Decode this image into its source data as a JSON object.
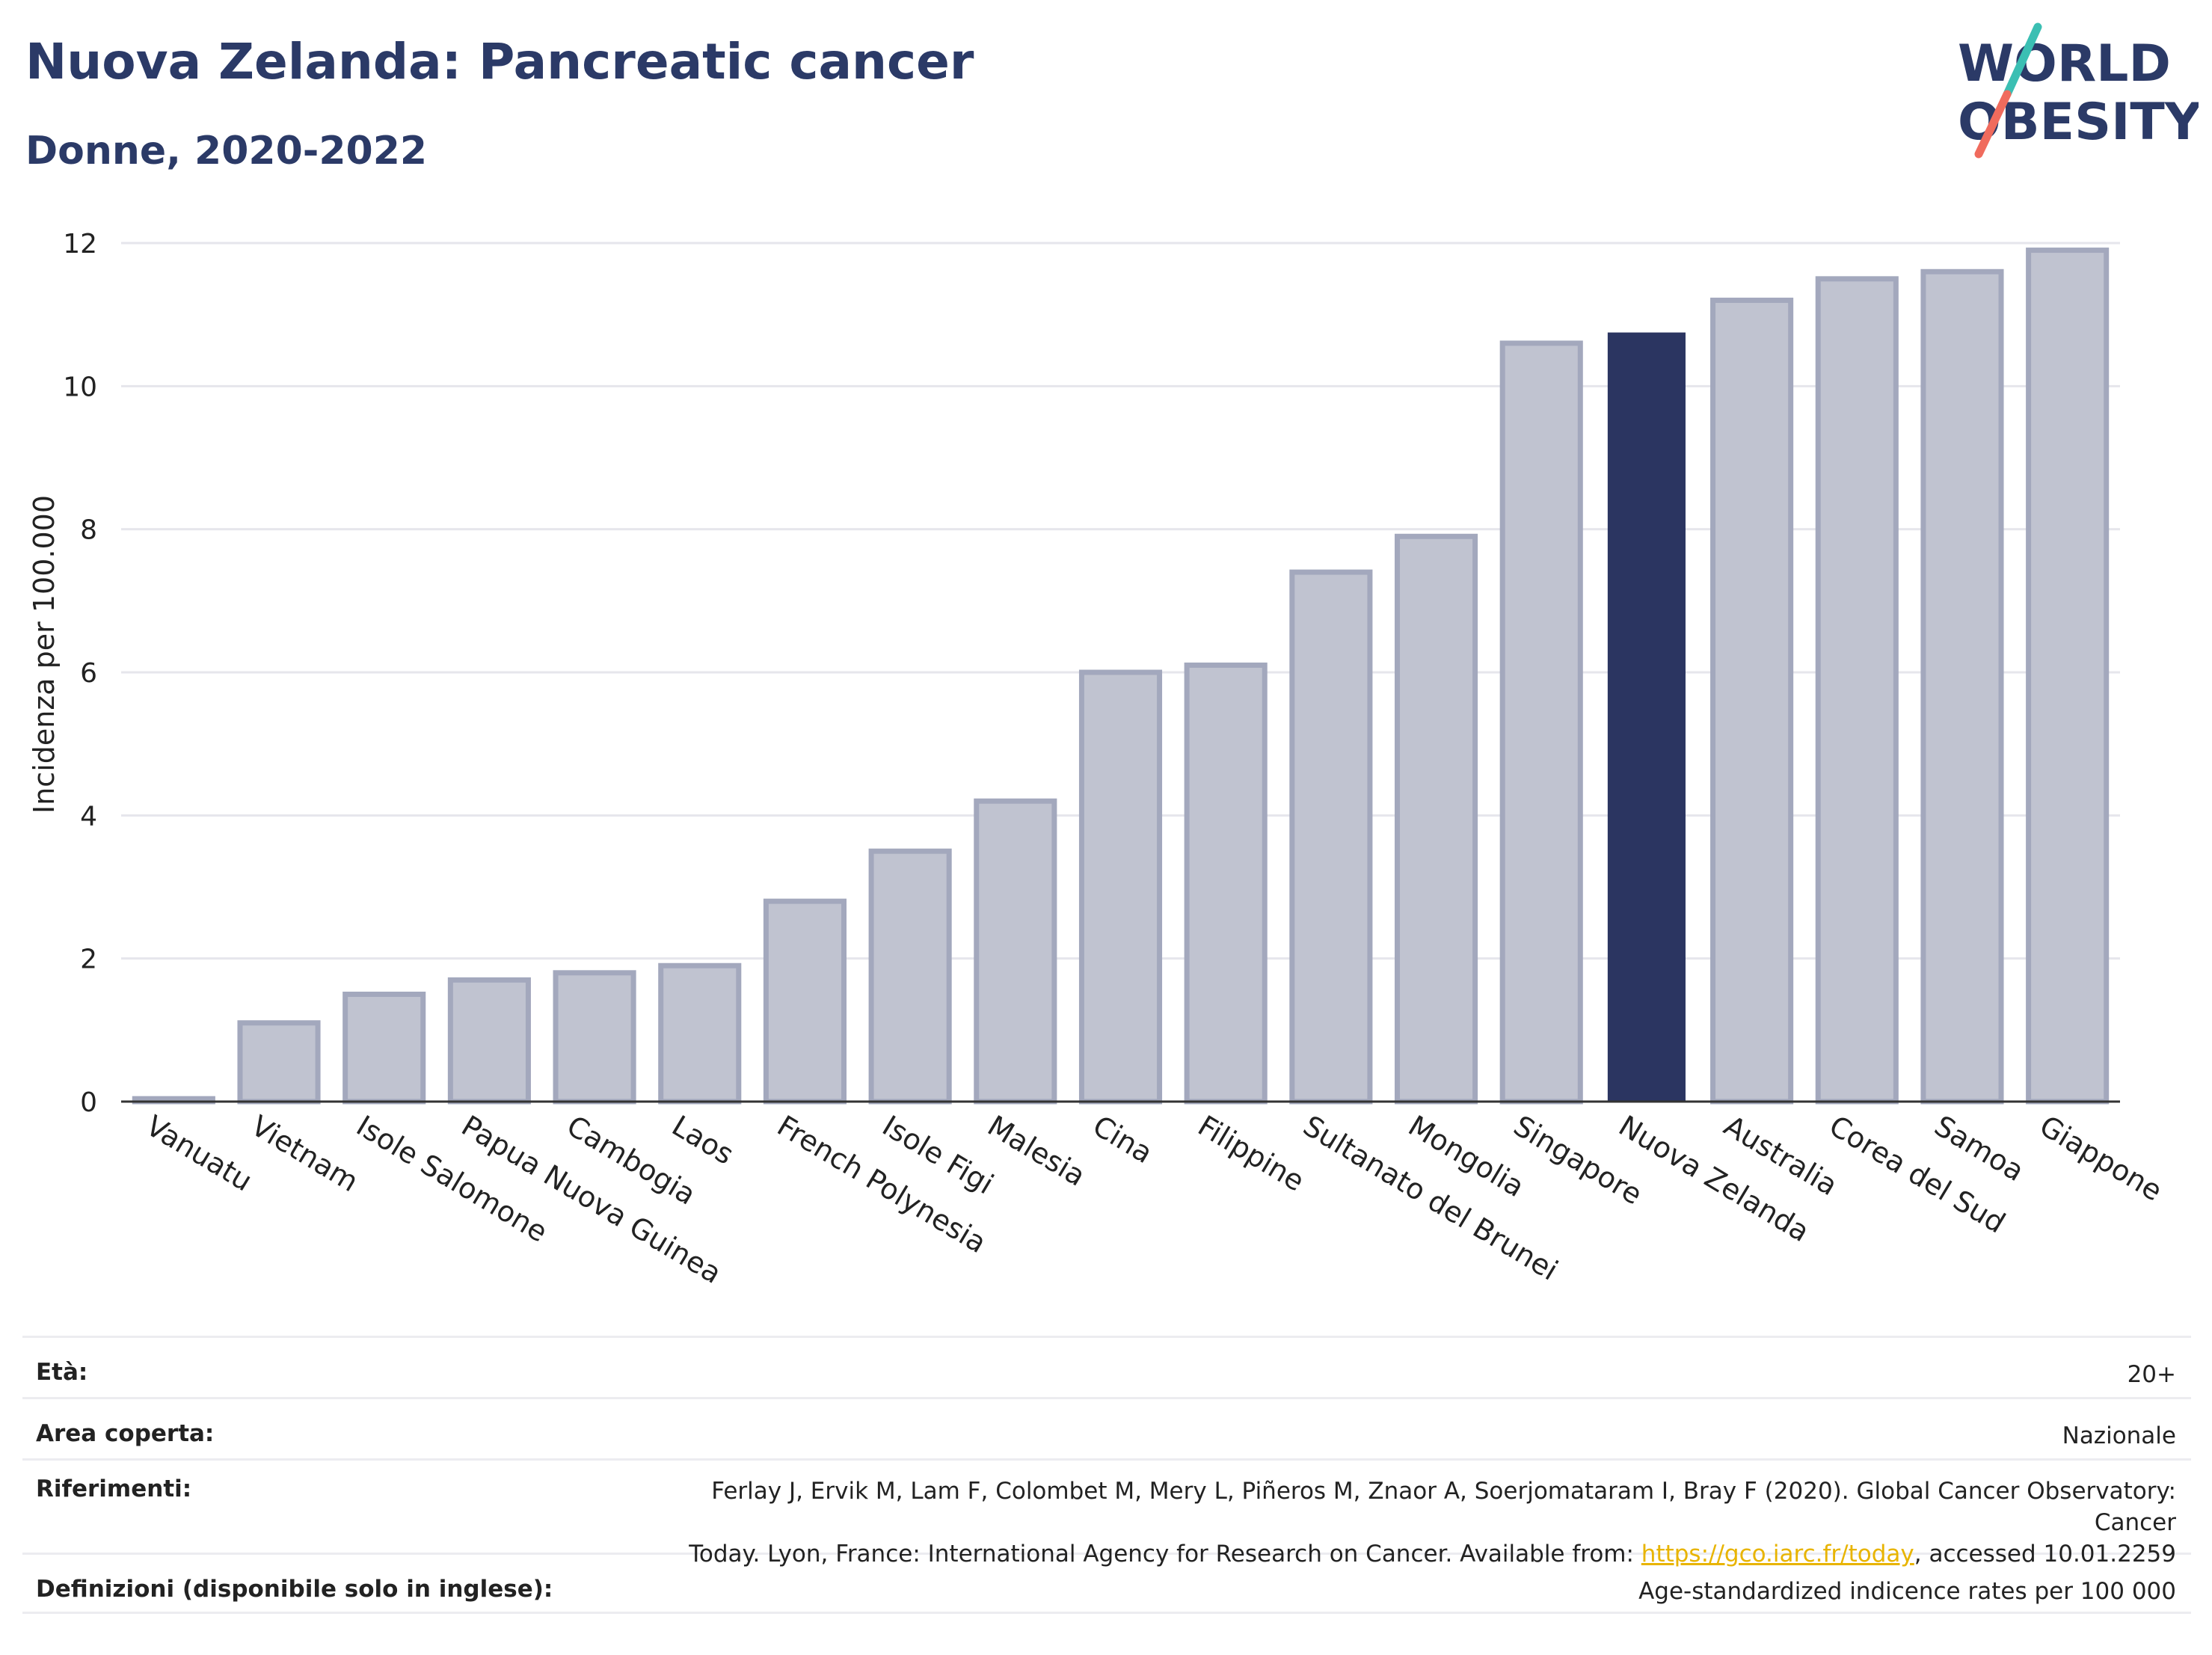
{
  "header": {
    "title": "Nuova Zelanda: Pancreatic cancer",
    "subtitle": "Donne, 2020-2022"
  },
  "logo": {
    "line1": "WORLD",
    "line2": "OBESITY",
    "icon": "slash-logo-icon",
    "colors": {
      "text": "#2b3a67",
      "teal": "#3bbfb3",
      "coral": "#f06b5d"
    }
  },
  "chart_data": {
    "type": "bar",
    "categories": [
      "Vanuatu",
      "Vietnam",
      "Isole Salomone",
      "Papua Nuova Guinea",
      "Cambogia",
      "Laos",
      "French Polynesia",
      "Isole Figi",
      "Malesia",
      "Cina",
      "Filippine",
      "Sultanato del Brunei",
      "Mongolia",
      "Singapore",
      "Nuova Zelanda",
      "Australia",
      "Corea del Sud",
      "Samoa",
      "Giappone"
    ],
    "values": [
      0.04,
      1.1,
      1.5,
      1.7,
      1.8,
      1.9,
      2.8,
      3.5,
      4.2,
      6.0,
      6.1,
      7.4,
      7.9,
      10.6,
      10.75,
      11.2,
      11.5,
      11.6,
      11.9
    ],
    "highlight": "Nuova Zelanda",
    "ylabel": "Incidenza per 100.000",
    "xlabel": "",
    "ylim": [
      0,
      12
    ],
    "yticks": [
      "0",
      "2",
      "4",
      "6",
      "8",
      "10",
      "12"
    ],
    "grid": true,
    "colors": {
      "bar": "#c0c3d0",
      "bar_stroke": "#a3a8bd",
      "highlight": "#2b3561"
    }
  },
  "info": {
    "rows": [
      {
        "label": "Età:",
        "value": "20+"
      },
      {
        "label": "Area coperta:",
        "value": "Nazionale"
      },
      {
        "label": "Riferimenti:",
        "value_line1": "Ferlay J, Ervik M, Lam F, Colombet M, Mery L, Piñeros M, Znaor A, Soerjomataram I, Bray F (2020). Global Cancer Observatory: Cancer",
        "value_pre": "Today. Lyon, France: International Agency for Research on Cancer. Available from: ",
        "link": "https://gco.iarc.fr/today",
        "value_post": ", accessed 10.01.2259"
      },
      {
        "label": "Definizioni (disponibile solo in inglese):",
        "value": "Age-standardized indicence rates per 100 000"
      }
    ]
  }
}
